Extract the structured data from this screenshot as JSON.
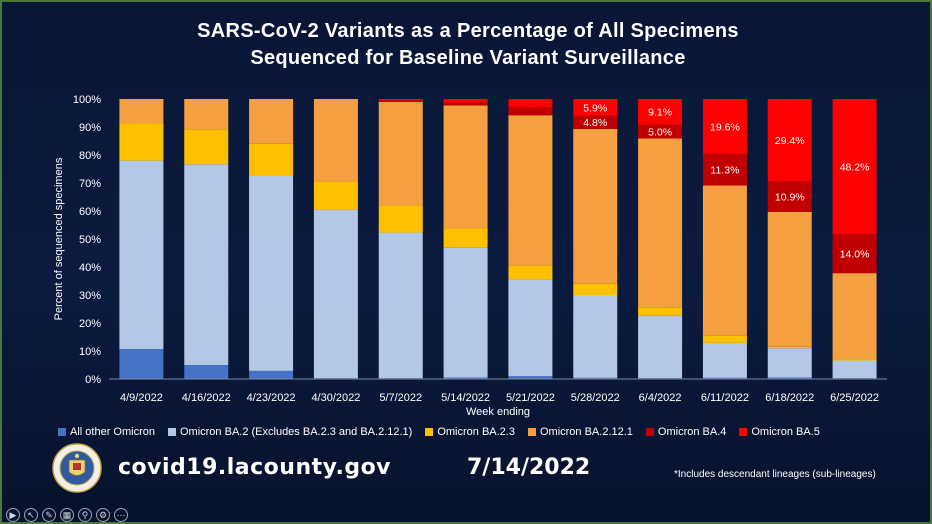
{
  "title_lines": [
    "SARS-CoV-2 Variants as a Percentage of All Specimens",
    "Sequenced for Baseline Variant Surveillance"
  ],
  "footer": {
    "url": "covid19.lacounty.gov",
    "date": "7/14/2022",
    "footnote": "*Includes descendant lineages (sub-lineages)"
  },
  "seal_icon": "la-county-seal-icon",
  "toolbar_icons": [
    "play-icon",
    "pointer-icon",
    "pen-icon",
    "slides-icon",
    "zoom-icon",
    "options-icon",
    "more-icon"
  ],
  "chart_data": {
    "type": "bar",
    "stacked": true,
    "xlabel": "Week ending",
    "ylabel": "Percent of sequenced specimens",
    "ylim": [
      0,
      100
    ],
    "yticks": [
      "0%",
      "10%",
      "20%",
      "30%",
      "40%",
      "50%",
      "60%",
      "70%",
      "80%",
      "90%",
      "100%"
    ],
    "grid": false,
    "legend_position": "bottom",
    "categories": [
      "4/9/2022",
      "4/16/2022",
      "4/23/2022",
      "4/30/2022",
      "5/7/2022",
      "5/14/2022",
      "5/21/2022",
      "5/28/2022",
      "6/4/2022",
      "6/11/2022",
      "6/18/2022",
      "6/25/2022"
    ],
    "series": [
      {
        "name": "All other Omicron",
        "color": "#4472c4",
        "values": [
          10.7,
          5.0,
          2.9,
          0.3,
          0.3,
          0.5,
          1.0,
          0.4,
          0.3,
          0.4,
          0.5,
          0.3
        ]
      },
      {
        "name": "Omicron BA.2 (Excludes BA.2.3 and BA.2.12.1)",
        "color": "#b4c7e7",
        "values": [
          67.3,
          71.7,
          69.6,
          60.2,
          52.0,
          46.4,
          34.5,
          29.6,
          22.3,
          12.5,
          10.5,
          6.3
        ]
      },
      {
        "name": "Omicron BA.2.3",
        "color": "#ffc000",
        "values": [
          13.4,
          12.5,
          11.5,
          10.0,
          9.7,
          7.0,
          5.0,
          4.0,
          3.0,
          2.5,
          0.5,
          0.5
        ]
      },
      {
        "name": "Omicron BA.2.12.1",
        "color": "#f4a040",
        "values": [
          8.6,
          10.8,
          16.0,
          29.5,
          37.0,
          43.8,
          53.7,
          55.3,
          60.3,
          53.7,
          48.2,
          30.7
        ]
      },
      {
        "name": "Omicron BA.4",
        "color": "#c00000",
        "values": [
          0.0,
          0.0,
          0.0,
          0.0,
          0.5,
          1.0,
          2.8,
          4.8,
          5.0,
          11.3,
          10.9,
          14.0
        ]
      },
      {
        "name": "Omicron BA.5",
        "color": "#ff0000",
        "values": [
          0.0,
          0.0,
          0.0,
          0.0,
          0.5,
          1.3,
          3.0,
          5.9,
          9.1,
          19.6,
          29.4,
          48.2
        ]
      }
    ],
    "data_labels": [
      {
        "series": "Omicron BA.5",
        "category": "5/28/2022",
        "text": "5.9%"
      },
      {
        "series": "Omicron BA.4",
        "category": "5/28/2022",
        "text": "4.8%"
      },
      {
        "series": "Omicron BA.5",
        "category": "6/4/2022",
        "text": "9.1%"
      },
      {
        "series": "Omicron BA.4",
        "category": "6/4/2022",
        "text": "5.0%"
      },
      {
        "series": "Omicron BA.5",
        "category": "6/11/2022",
        "text": "19.6%"
      },
      {
        "series": "Omicron BA.4",
        "category": "6/11/2022",
        "text": "11.3%"
      },
      {
        "series": "Omicron BA.5",
        "category": "6/18/2022",
        "text": "29.4%"
      },
      {
        "series": "Omicron BA.4",
        "category": "6/18/2022",
        "text": "10.9%"
      },
      {
        "series": "Omicron BA.5",
        "category": "6/25/2022",
        "text": "48.2%"
      },
      {
        "series": "Omicron BA.4",
        "category": "6/25/2022",
        "text": "14.0%"
      }
    ]
  }
}
